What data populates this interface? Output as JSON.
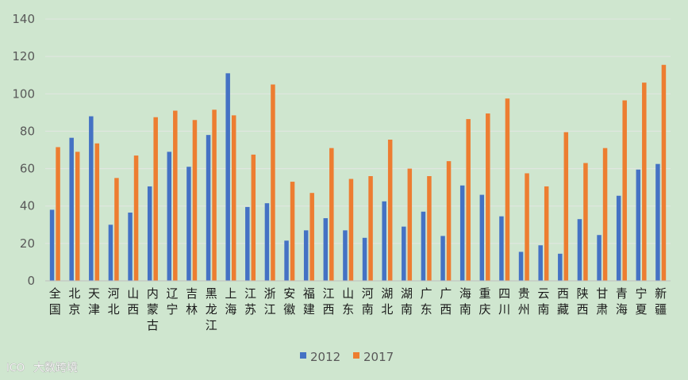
{
  "watermark": {
    "logo": "ICO",
    "text": "大数跨境"
  },
  "colors": {
    "s2012": "#4472c4",
    "s2017": "#ed7d31",
    "grid": "#e2e6e2",
    "background": "#cfe6cf"
  },
  "chart_data": {
    "type": "bar",
    "ylim": [
      0,
      140
    ],
    "yticks": [
      0,
      20,
      40,
      60,
      80,
      100,
      120,
      140
    ],
    "grid": true,
    "legend_position": "bottom",
    "categories": [
      "全国",
      "北京",
      "天津",
      "河北",
      "山西",
      "内蒙古",
      "辽宁",
      "吉林",
      "黑龙江",
      "上海",
      "江苏",
      "浙江",
      "安徽",
      "福建",
      "江西",
      "山东",
      "河南",
      "湖北",
      "湖南",
      "广东",
      "广西",
      "海南",
      "重庆",
      "四川",
      "贵州",
      "云南",
      "西藏",
      "陕西",
      "甘肃",
      "青海",
      "宁夏",
      "新疆"
    ],
    "series": [
      {
        "name": "2012",
        "values": [
          38,
          76.5,
          88,
          30,
          36.5,
          50.5,
          69,
          61,
          78,
          111,
          39.5,
          41.5,
          21.5,
          27,
          33.5,
          27,
          23,
          42.5,
          29,
          37,
          24,
          51,
          46,
          34.5,
          15.5,
          19,
          14.5,
          33,
          24.5,
          45.5,
          59.5,
          62.5
        ]
      },
      {
        "name": "2017",
        "values": [
          71.5,
          69,
          73.5,
          55,
          67,
          87.5,
          91,
          86,
          91.5,
          88.5,
          67.5,
          105,
          53,
          47,
          71,
          54.5,
          56,
          75.5,
          60,
          56,
          64,
          86.5,
          89.5,
          97.5,
          57.5,
          50.5,
          79.5,
          63,
          71,
          96.5,
          106,
          115.5
        ]
      }
    ]
  }
}
